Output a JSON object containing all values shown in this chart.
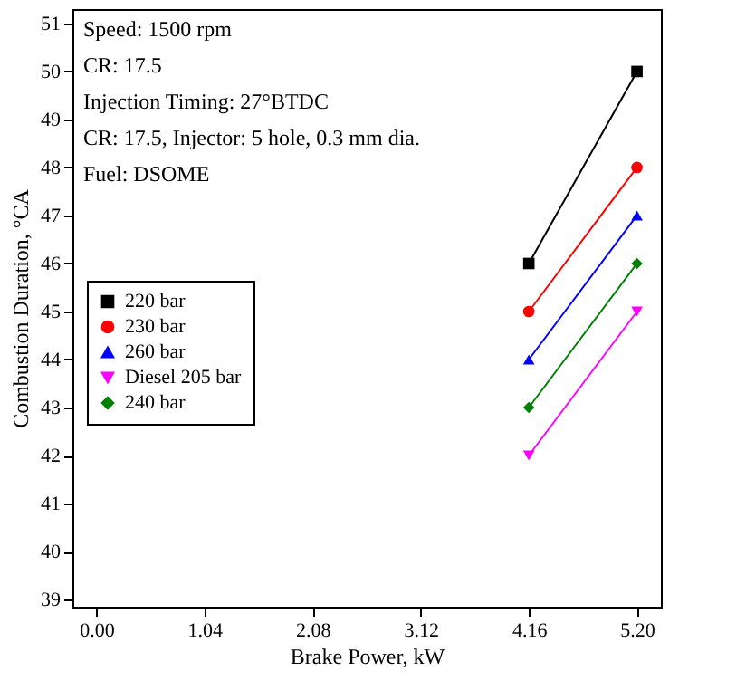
{
  "chart_data": {
    "type": "line",
    "xlabel": "Brake Power, kW",
    "ylabel": "Combustion Duration, °CA",
    "x": [
      4.16,
      5.2
    ],
    "series": [
      {
        "name": "220 bar",
        "color": "#000000",
        "marker": "square",
        "values": [
          46,
          50
        ]
      },
      {
        "name": "230 bar",
        "color": "#ff0000",
        "marker": "circle",
        "values": [
          45,
          48
        ]
      },
      {
        "name": "260 bar",
        "color": "#0000ff",
        "marker": "triangle",
        "values": [
          44,
          47
        ]
      },
      {
        "name": "Diesel 205 bar",
        "color": "#ff00ff",
        "marker": "triangle-down",
        "values": [
          42,
          45
        ]
      },
      {
        "name": "240 bar",
        "color": "#008000",
        "marker": "diamond",
        "values": [
          43,
          46
        ]
      }
    ],
    "xlim": [
      -0.23,
      5.43
    ],
    "xticks": [
      {
        "value": 0,
        "label": "0.00"
      },
      {
        "value": 1.04,
        "label": "1.04"
      },
      {
        "value": 2.08,
        "label": "2.08"
      },
      {
        "value": 3.12,
        "label": "3.12"
      },
      {
        "value": 4.16,
        "label": "4.16"
      },
      {
        "value": 5.2,
        "label": "5.20"
      }
    ],
    "ylim": [
      38.85,
      51.3
    ],
    "yticks": [
      39,
      40,
      41,
      42,
      43,
      44,
      45,
      46,
      47,
      48,
      49,
      50,
      51
    ],
    "annotations": [
      "Speed: 1500 rpm",
      "CR: 17.5",
      "Injection Timing: 27°BTDC",
      "CR: 17.5, Injector: 5 hole, 0.3 mm dia.",
      "Fuel: DSOME"
    ],
    "legend": "left",
    "grid": false,
    "line_style": "solid"
  }
}
